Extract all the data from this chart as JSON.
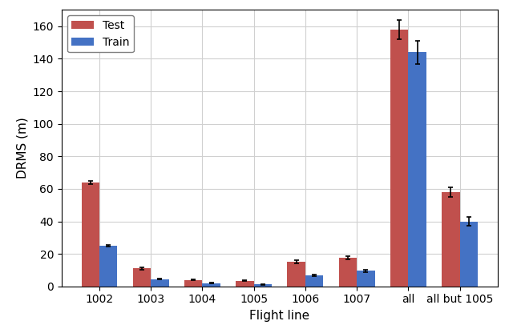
{
  "categories": [
    "1002",
    "1003",
    "1004",
    "1005",
    "1006",
    "1007",
    "all",
    "all but 1005"
  ],
  "test_values": [
    64.0,
    11.0,
    4.0,
    3.5,
    15.0,
    17.5,
    158.0,
    58.0
  ],
  "train_values": [
    25.0,
    4.5,
    2.0,
    1.2,
    7.0,
    9.5,
    144.0,
    40.0
  ],
  "test_errors": [
    1.0,
    0.8,
    0.3,
    0.3,
    1.0,
    1.0,
    6.0,
    3.0
  ],
  "train_errors": [
    0.5,
    0.4,
    0.2,
    0.2,
    0.5,
    0.6,
    7.0,
    2.5
  ],
  "test_color": "#c0504d",
  "train_color": "#4472c4",
  "xlabel": "Flight line",
  "ylabel": "DRMS (m)",
  "ylim": [
    0,
    170
  ],
  "yticks": [
    0,
    20,
    40,
    60,
    80,
    100,
    120,
    140,
    160
  ],
  "bar_width": 0.35,
  "legend_labels": [
    "Test",
    "Train"
  ],
  "figsize": [
    6.4,
    4.16
  ],
  "dpi": 100
}
